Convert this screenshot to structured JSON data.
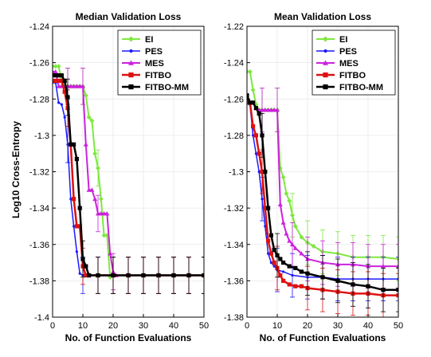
{
  "figure": {
    "ylabel": "Log10 Cross-Entropy"
  },
  "colors": {
    "EI": "#7ee83f",
    "PES": "#1a1aff",
    "MES": "#cc22dd",
    "FITBO": "#dd1111",
    "FITBO-MM": "#000000",
    "grid": "#e8e8e8"
  },
  "chart_data": [
    {
      "type": "line",
      "title": "Median Validation Loss",
      "xlabel": "No. of Function Evaluations",
      "ylabel": "Log10 Cross-Entropy",
      "xlim": [
        0,
        50
      ],
      "ylim": [
        -1.4,
        -1.24
      ],
      "xticks": [
        0,
        10,
        20,
        30,
        40,
        50
      ],
      "yticks": [
        -1.4,
        -1.38,
        -1.36,
        -1.34,
        -1.32,
        -1.3,
        -1.28,
        -1.26,
        -1.24
      ],
      "ytick_labels": [
        "-1.4",
        "-1.38",
        "-1.36",
        "-1.34",
        "-1.32",
        "-1.3",
        "-1.28",
        "-1.26",
        "-1.24"
      ],
      "grid": true,
      "legend": "top-right",
      "series": [
        {
          "name": "EI",
          "x": [
            0,
            1,
            2,
            3,
            4,
            5,
            6,
            7,
            8,
            9,
            10,
            11,
            12,
            13,
            14,
            15,
            16,
            17,
            18,
            19,
            20,
            25,
            30,
            35,
            40,
            45,
            50
          ],
          "y": [
            -1.262,
            -1.262,
            -1.262,
            -1.27,
            -1.273,
            -1.273,
            -1.273,
            -1.273,
            -1.273,
            -1.273,
            -1.273,
            -1.278,
            -1.29,
            -1.292,
            -1.31,
            -1.318,
            -1.335,
            -1.355,
            -1.355,
            -1.378,
            -1.377,
            -1.377,
            -1.377,
            -1.377,
            -1.377,
            -1.377,
            -1.377
          ]
        },
        {
          "name": "PES",
          "x": [
            0,
            1,
            2,
            3,
            4,
            5,
            6,
            7,
            8,
            9,
            10,
            11,
            12,
            15,
            20,
            25,
            30,
            35,
            40,
            45,
            50
          ],
          "y": [
            -1.271,
            -1.271,
            -1.282,
            -1.283,
            -1.29,
            -1.305,
            -1.335,
            -1.35,
            -1.364,
            -1.376,
            -1.377,
            -1.377,
            -1.377,
            -1.377,
            -1.377,
            -1.377,
            -1.377,
            -1.377,
            -1.377,
            -1.377,
            -1.377
          ]
        },
        {
          "name": "MES",
          "x": [
            0,
            1,
            2,
            3,
            4,
            5,
            6,
            7,
            8,
            9,
            10,
            11,
            12,
            13,
            14,
            15,
            16,
            17,
            18,
            19,
            20,
            21,
            25,
            30,
            35,
            40,
            45,
            50
          ],
          "y": [
            -1.265,
            -1.265,
            -1.273,
            -1.273,
            -1.273,
            -1.273,
            -1.273,
            -1.273,
            -1.273,
            -1.273,
            -1.273,
            -1.305,
            -1.33,
            -1.33,
            -1.335,
            -1.343,
            -1.343,
            -1.343,
            -1.343,
            -1.365,
            -1.375,
            -1.377,
            -1.377,
            -1.377,
            -1.377,
            -1.377,
            -1.377,
            -1.377
          ]
        },
        {
          "name": "FITBO",
          "x": [
            0,
            1,
            2,
            3,
            4,
            5,
            6,
            7,
            8,
            9,
            10,
            11,
            12,
            15,
            20,
            25,
            30,
            35,
            40,
            45,
            50
          ],
          "y": [
            -1.27,
            -1.27,
            -1.27,
            -1.27,
            -1.276,
            -1.285,
            -1.305,
            -1.335,
            -1.35,
            -1.35,
            -1.372,
            -1.377,
            -1.377,
            -1.377,
            -1.377,
            -1.377,
            -1.377,
            -1.377,
            -1.377,
            -1.377,
            -1.377
          ]
        },
        {
          "name": "FITBO-MM",
          "x": [
            0,
            1,
            2,
            3,
            4,
            5,
            6,
            7,
            8,
            9,
            10,
            11,
            12,
            15,
            20,
            25,
            30,
            35,
            40,
            45,
            50
          ],
          "y": [
            -1.267,
            -1.267,
            -1.267,
            -1.267,
            -1.27,
            -1.279,
            -1.305,
            -1.305,
            -1.313,
            -1.34,
            -1.368,
            -1.372,
            -1.377,
            -1.377,
            -1.377,
            -1.377,
            -1.377,
            -1.377,
            -1.377,
            -1.377,
            -1.377
          ]
        }
      ]
    },
    {
      "type": "line",
      "title": "Mean Validation Loss",
      "xlabel": "No. of Function Evaluations",
      "xlim": [
        0,
        50
      ],
      "ylim": [
        -1.38,
        -1.22
      ],
      "xticks": [
        0,
        10,
        20,
        30,
        40,
        50
      ],
      "yticks": [
        -1.38,
        -1.36,
        -1.34,
        -1.32,
        -1.3,
        -1.28,
        -1.26,
        -1.24,
        -1.22
      ],
      "ytick_labels": [
        "-1.38",
        "-1.36",
        "-1.34",
        "-1.32",
        "-1.3",
        "-1.28",
        "-1.26",
        "-1.24",
        "-1.22"
      ],
      "grid": true,
      "legend": "top-right",
      "series": [
        {
          "name": "EI",
          "x": [
            0,
            1,
            2,
            3,
            4,
            5,
            6,
            7,
            8,
            9,
            10,
            11,
            12,
            13,
            14,
            15,
            16,
            18,
            20,
            22,
            25,
            30,
            35,
            40,
            45,
            50
          ],
          "y": [
            -1.245,
            -1.245,
            -1.255,
            -1.263,
            -1.266,
            -1.266,
            -1.266,
            -1.266,
            -1.266,
            -1.266,
            -1.266,
            -1.298,
            -1.303,
            -1.312,
            -1.316,
            -1.324,
            -1.33,
            -1.336,
            -1.339,
            -1.341,
            -1.344,
            -1.345,
            -1.347,
            -1.347,
            -1.347,
            -1.348
          ]
        },
        {
          "name": "PES",
          "x": [
            0,
            1,
            2,
            3,
            4,
            5,
            6,
            7,
            8,
            9,
            10,
            12,
            15,
            20,
            25,
            30,
            35,
            40,
            45,
            50
          ],
          "y": [
            -1.26,
            -1.263,
            -1.28,
            -1.29,
            -1.3,
            -1.315,
            -1.33,
            -1.345,
            -1.35,
            -1.352,
            -1.354,
            -1.355,
            -1.357,
            -1.358,
            -1.358,
            -1.359,
            -1.359,
            -1.359,
            -1.359,
            -1.359
          ]
        },
        {
          "name": "MES",
          "x": [
            0,
            1,
            2,
            3,
            4,
            5,
            6,
            7,
            8,
            9,
            10,
            11,
            12,
            13,
            14,
            15,
            16,
            18,
            20,
            25,
            30,
            35,
            40,
            45,
            50
          ],
          "y": [
            -1.262,
            -1.262,
            -1.262,
            -1.265,
            -1.266,
            -1.266,
            -1.266,
            -1.266,
            -1.266,
            -1.266,
            -1.266,
            -1.318,
            -1.328,
            -1.334,
            -1.338,
            -1.34,
            -1.342,
            -1.345,
            -1.348,
            -1.35,
            -1.351,
            -1.351,
            -1.352,
            -1.352,
            -1.352
          ]
        },
        {
          "name": "FITBO",
          "x": [
            0,
            1,
            2,
            3,
            4,
            5,
            6,
            7,
            8,
            9,
            10,
            11,
            12,
            14,
            16,
            18,
            20,
            25,
            30,
            35,
            40,
            45,
            50
          ],
          "y": [
            -1.262,
            -1.262,
            -1.275,
            -1.28,
            -1.29,
            -1.3,
            -1.32,
            -1.338,
            -1.345,
            -1.35,
            -1.353,
            -1.357,
            -1.36,
            -1.362,
            -1.363,
            -1.363,
            -1.364,
            -1.365,
            -1.366,
            -1.367,
            -1.367,
            -1.368,
            -1.368
          ]
        },
        {
          "name": "FITBO-MM",
          "x": [
            0,
            1,
            2,
            3,
            4,
            5,
            6,
            7,
            8,
            9,
            10,
            11,
            12,
            14,
            16,
            18,
            20,
            25,
            30,
            35,
            40,
            45,
            50
          ],
          "y": [
            -1.258,
            -1.262,
            -1.262,
            -1.265,
            -1.268,
            -1.28,
            -1.3,
            -1.32,
            -1.335,
            -1.343,
            -1.346,
            -1.348,
            -1.35,
            -1.352,
            -1.353,
            -1.355,
            -1.356,
            -1.358,
            -1.36,
            -1.362,
            -1.363,
            -1.365,
            -1.365
          ]
        }
      ]
    }
  ]
}
